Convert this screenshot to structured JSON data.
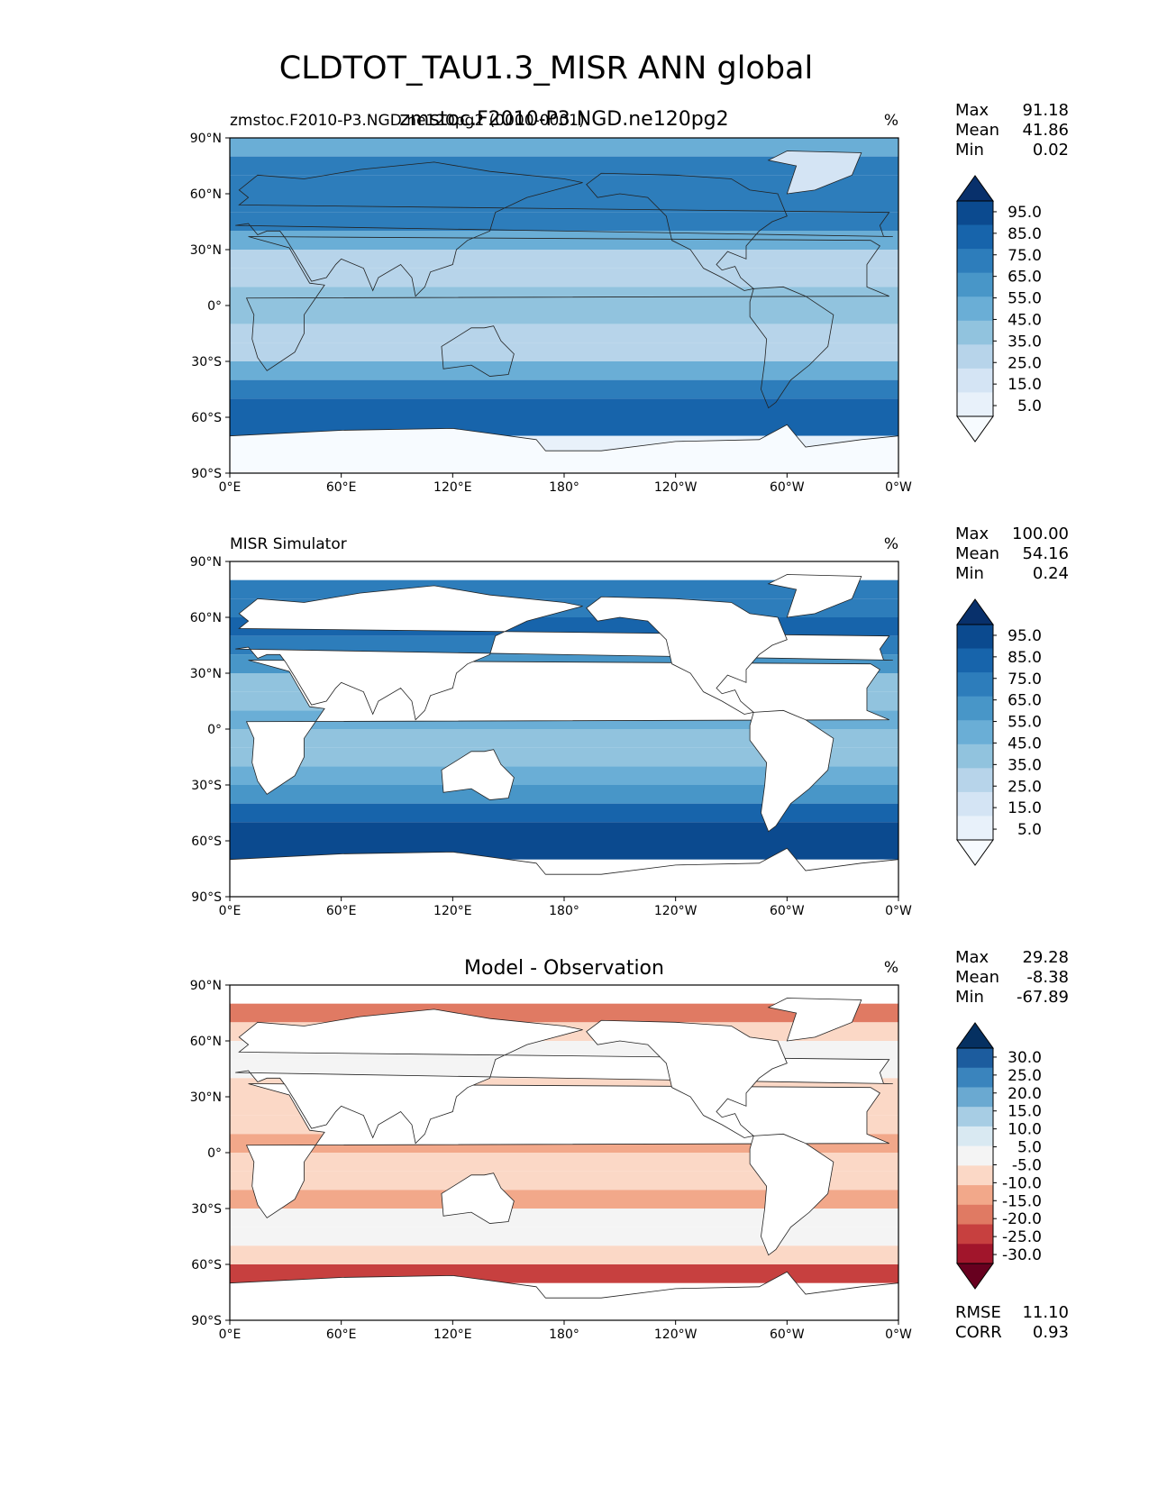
{
  "title": "CLDTOT_TAU1.3_MISR ANN global",
  "subtitle_overlap": "zmstoc.F2010-P3.NGD.ne120pg2",
  "chart_data": [
    {
      "type": "heatmap",
      "left_title": "zmstoc.F2010-P3.NGD.ne120pg2 (0000-0001)",
      "center_title": "",
      "units": "%",
      "stats": [
        [
          "Max",
          "91.18"
        ],
        [
          "Mean",
          "41.86"
        ],
        [
          "Min",
          "0.02"
        ]
      ],
      "colorbar": {
        "levels": [
          "95.0",
          "85.0",
          "75.0",
          "65.0",
          "55.0",
          "45.0",
          "35.0",
          "25.0",
          "15.0",
          "5.0"
        ],
        "colors": [
          "#08306b",
          "#0b4a8f",
          "#1764ab",
          "#2d7dbb",
          "#4896c8",
          "#6aaed6",
          "#91c3de",
          "#b7d4ea",
          "#d4e4f4",
          "#e8f1fa",
          "#f7fbff"
        ]
      },
      "xticks": [
        "0°E",
        "60°E",
        "120°E",
        "180°",
        "120°W",
        "60°W",
        "0°W"
      ],
      "yticks": [
        "90°N",
        "60°N",
        "30°N",
        "0°",
        "30°S",
        "60°S",
        "90°S"
      ],
      "xlim": [
        0,
        360
      ],
      "ylim": [
        -90,
        90
      ],
      "zonal_mean": [
        {
          "lat": 85,
          "val": 52
        },
        {
          "lat": 75,
          "val": 68
        },
        {
          "lat": 65,
          "val": 70
        },
        {
          "lat": 55,
          "val": 74
        },
        {
          "lat": 45,
          "val": 66
        },
        {
          "lat": 35,
          "val": 46
        },
        {
          "lat": 25,
          "val": 30
        },
        {
          "lat": 15,
          "val": 34
        },
        {
          "lat": 5,
          "val": 44
        },
        {
          "lat": -5,
          "val": 40
        },
        {
          "lat": -15,
          "val": 30
        },
        {
          "lat": -25,
          "val": 34
        },
        {
          "lat": -35,
          "val": 50
        },
        {
          "lat": -45,
          "val": 70
        },
        {
          "lat": -55,
          "val": 82
        },
        {
          "lat": -65,
          "val": 84
        },
        {
          "lat": -75,
          "val": 12
        },
        {
          "lat": -85,
          "val": 5
        }
      ]
    },
    {
      "type": "heatmap",
      "left_title": "MISR Simulator",
      "center_title": "",
      "units": "%",
      "stats": [
        [
          "Max",
          "100.00"
        ],
        [
          "Mean",
          "54.16"
        ],
        [
          "Min",
          "0.24"
        ]
      ],
      "colorbar": {
        "levels": [
          "95.0",
          "85.0",
          "75.0",
          "65.0",
          "55.0",
          "45.0",
          "35.0",
          "25.0",
          "15.0",
          "5.0"
        ],
        "colors": [
          "#08306b",
          "#0b4a8f",
          "#1764ab",
          "#2d7dbb",
          "#4896c8",
          "#6aaed6",
          "#91c3de",
          "#b7d4ea",
          "#d4e4f4",
          "#e8f1fa",
          "#f7fbff"
        ]
      },
      "xticks": [
        "0°E",
        "60°E",
        "120°E",
        "180°",
        "120°W",
        "60°W",
        "0°W"
      ],
      "yticks": [
        "90°N",
        "60°N",
        "30°N",
        "0°",
        "30°S",
        "60°S",
        "90°S"
      ],
      "xlim": [
        0,
        360
      ],
      "ylim": [
        -90,
        90
      ],
      "zonal_mean": [
        {
          "lat": 75,
          "val": 72
        },
        {
          "lat": 65,
          "val": 74
        },
        {
          "lat": 55,
          "val": 78
        },
        {
          "lat": 45,
          "val": 70
        },
        {
          "lat": 35,
          "val": 56
        },
        {
          "lat": 25,
          "val": 40
        },
        {
          "lat": 15,
          "val": 42
        },
        {
          "lat": 5,
          "val": 52
        },
        {
          "lat": -5,
          "val": 44
        },
        {
          "lat": -15,
          "val": 40
        },
        {
          "lat": -25,
          "val": 48
        },
        {
          "lat": -35,
          "val": 64
        },
        {
          "lat": -45,
          "val": 80
        },
        {
          "lat": -55,
          "val": 88
        },
        {
          "lat": -65,
          "val": 92
        }
      ]
    },
    {
      "type": "heatmap",
      "left_title": "",
      "center_title": "Model - Observation",
      "units": "%",
      "stats": [
        [
          "Max",
          "29.28"
        ],
        [
          "Mean",
          "-8.38"
        ],
        [
          "Min",
          "-67.89"
        ]
      ],
      "colorbar": {
        "levels": [
          "30.0",
          "25.0",
          "20.0",
          "15.0",
          "10.0",
          "5.0",
          "-5.0",
          "-10.0",
          "-15.0",
          "-20.0",
          "-25.0",
          "-30.0"
        ],
        "colors": [
          "#053061",
          "#1c5c9e",
          "#3a84bd",
          "#6aa9d1",
          "#a7cde4",
          "#d9e9f2",
          "#f4f4f4",
          "#fbd8c6",
          "#f2a88a",
          "#e07a63",
          "#c7403f",
          "#a1152b",
          "#67001f"
        ]
      },
      "xticks": [
        "0°E",
        "60°E",
        "120°E",
        "180°",
        "120°W",
        "60°W",
        "0°W"
      ],
      "yticks": [
        "90°N",
        "60°N",
        "30°N",
        "0°",
        "30°S",
        "60°S",
        "90°S"
      ],
      "xlim": [
        0,
        360
      ],
      "ylim": [
        -90,
        90
      ],
      "footer_stats": [
        [
          "RMSE",
          "11.10"
        ],
        [
          "CORR",
          "0.93"
        ]
      ],
      "zonal_mean": [
        {
          "lat": 75,
          "val": -20
        },
        {
          "lat": 65,
          "val": -6
        },
        {
          "lat": 55,
          "val": -4
        },
        {
          "lat": 45,
          "val": -4
        },
        {
          "lat": 35,
          "val": -8
        },
        {
          "lat": 25,
          "val": -10
        },
        {
          "lat": 15,
          "val": -9
        },
        {
          "lat": 5,
          "val": -14
        },
        {
          "lat": -5,
          "val": -8
        },
        {
          "lat": -15,
          "val": -10
        },
        {
          "lat": -25,
          "val": -12
        },
        {
          "lat": -35,
          "val": -4
        },
        {
          "lat": -45,
          "val": -3
        },
        {
          "lat": -55,
          "val": -6
        },
        {
          "lat": -65,
          "val": -25
        }
      ]
    }
  ]
}
